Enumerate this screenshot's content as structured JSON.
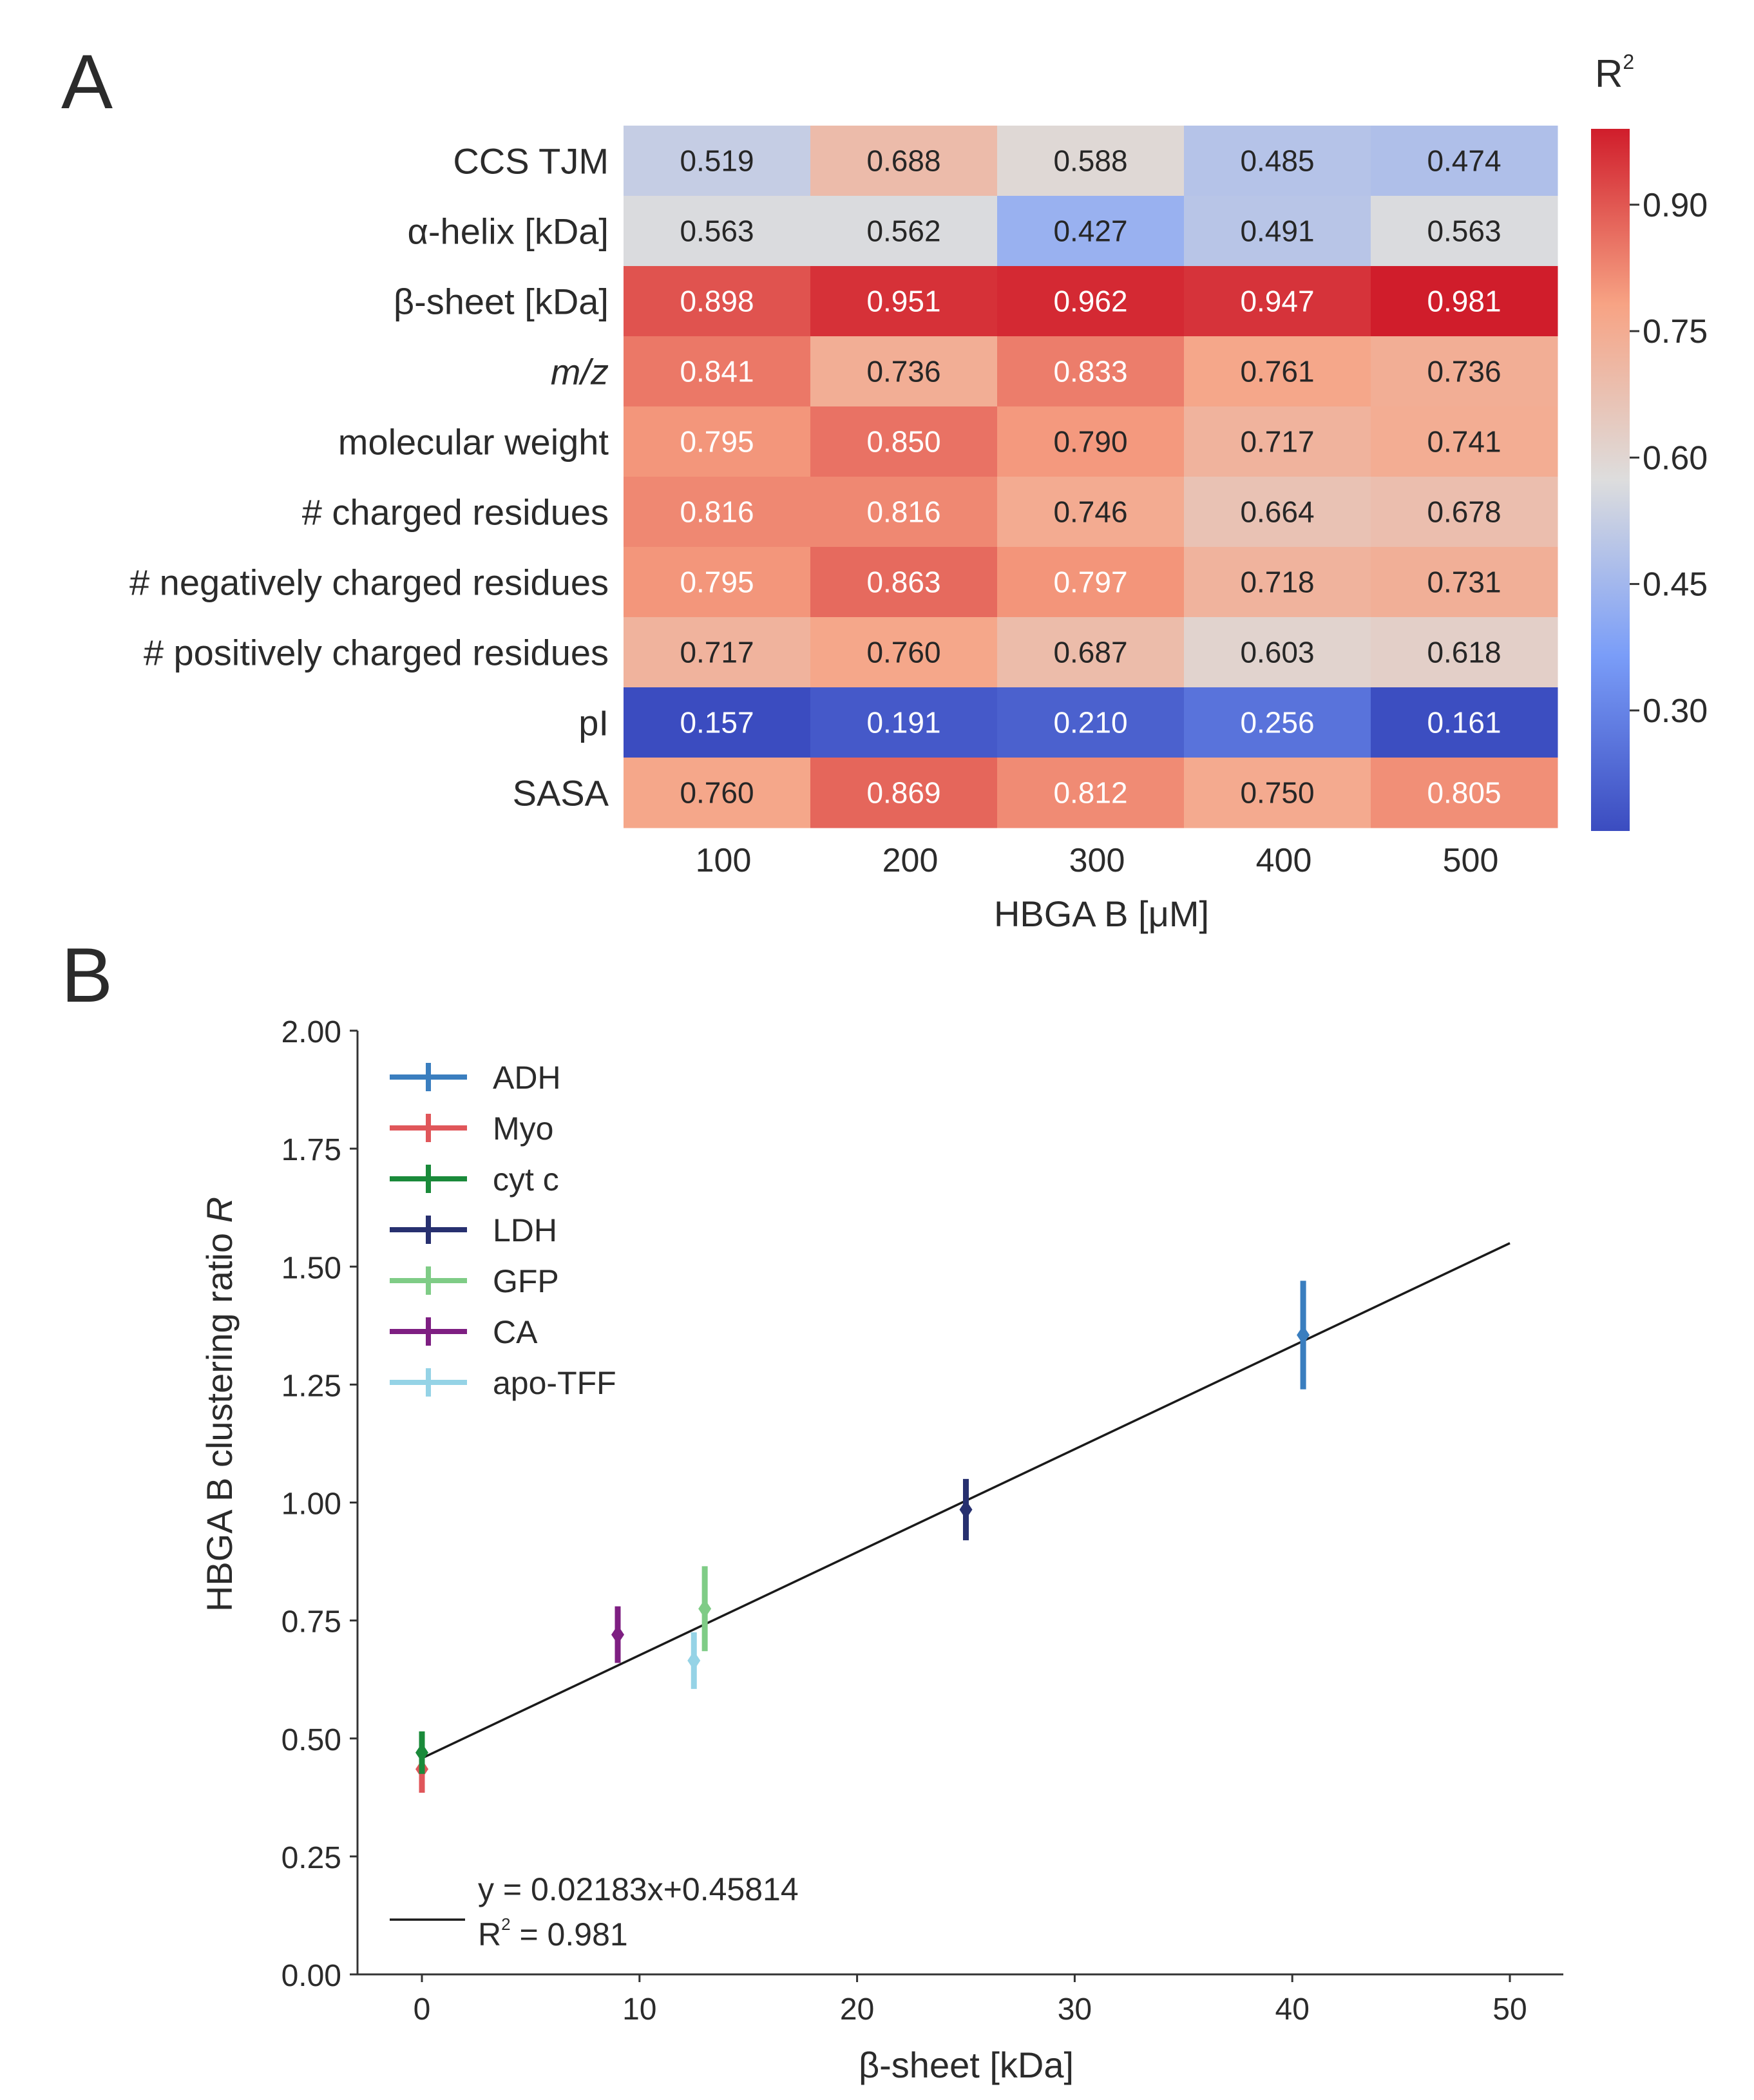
{
  "panel_a": {
    "letter": "A",
    "colorbar_title": "R",
    "colorbar_title_sup": "2",
    "colorbar_ticks": [
      {
        "value": 0.9,
        "label": "0.90"
      },
      {
        "value": 0.75,
        "label": "0.75"
      },
      {
        "value": 0.6,
        "label": "0.60"
      },
      {
        "value": 0.45,
        "label": "0.45"
      },
      {
        "value": 0.3,
        "label": "0.30"
      }
    ]
  },
  "panel_b": {
    "letter": "B",
    "fit_equation": "y = 0.02183x+0.45814",
    "fit_r2_prefix": "R",
    "fit_r2_sup": "2",
    "fit_r2_value": " = 0.981"
  },
  "chart_data": [
    {
      "type": "heatmap",
      "title": "",
      "xlabel": "HBGA B [μM]",
      "ylabel": "",
      "x_categories": [
        "100",
        "200",
        "300",
        "400",
        "500"
      ],
      "y_categories": [
        {
          "label": "CCS TJM",
          "italic": false
        },
        {
          "label": "α-helix [kDa]",
          "italic": false
        },
        {
          "label": "β-sheet [kDa]",
          "italic": false
        },
        {
          "label": "m/z",
          "italic": true
        },
        {
          "label": "molecular weight",
          "italic": false
        },
        {
          "label": "# charged residues",
          "italic": false
        },
        {
          "label": "# negatively charged residues",
          "italic": false
        },
        {
          "label": "# positively charged residues",
          "italic": false
        },
        {
          "label": "pI",
          "italic": false
        },
        {
          "label": "SASA",
          "italic": false
        }
      ],
      "values": [
        [
          "0.519",
          "0.688",
          "0.588",
          "0.485",
          "0.474"
        ],
        [
          "0.563",
          "0.562",
          "0.427",
          "0.491",
          "0.563"
        ],
        [
          "0.898",
          "0.951",
          "0.962",
          "0.947",
          "0.981"
        ],
        [
          "0.841",
          "0.736",
          "0.833",
          "0.761",
          "0.736"
        ],
        [
          "0.795",
          "0.850",
          "0.790",
          "0.717",
          "0.741"
        ],
        [
          "0.816",
          "0.816",
          "0.746",
          "0.664",
          "0.678"
        ],
        [
          "0.795",
          "0.863",
          "0.797",
          "0.718",
          "0.731"
        ],
        [
          "0.717",
          "0.760",
          "0.687",
          "0.603",
          "0.618"
        ],
        [
          "0.157",
          "0.191",
          "0.210",
          "0.256",
          "0.161"
        ],
        [
          "0.760",
          "0.869",
          "0.812",
          "0.750",
          "0.805"
        ]
      ],
      "colormap": "coolwarm",
      "color_range": [
        0.157,
        0.981
      ],
      "colors": {
        "low": "#3b4cc0",
        "mid": "#dddddd",
        "high": "#d01d2b"
      }
    },
    {
      "type": "scatter",
      "title": "",
      "xlabel": "β-sheet [kDa]",
      "ylabel": "HBGA B clustering ratio R",
      "xlim": [
        -3,
        52
      ],
      "ylim": [
        0,
        2.0
      ],
      "xticks": [
        {
          "value": 0,
          "label": "0"
        },
        {
          "value": 10,
          "label": "10"
        },
        {
          "value": 20,
          "label": "20"
        },
        {
          "value": 30,
          "label": "30"
        },
        {
          "value": 40,
          "label": "40"
        },
        {
          "value": 50,
          "label": "50"
        }
      ],
      "yticks": [
        {
          "value": 0,
          "label": "0.00"
        },
        {
          "value": 0.25,
          "label": "0.25"
        },
        {
          "value": 0.5,
          "label": "0.50"
        },
        {
          "value": 0.75,
          "label": "0.75"
        },
        {
          "value": 1.0,
          "label": "1.00"
        },
        {
          "value": 1.25,
          "label": "1.25"
        },
        {
          "value": 1.5,
          "label": "1.50"
        },
        {
          "value": 1.75,
          "label": "1.75"
        },
        {
          "value": 2.0,
          "label": "2.00"
        }
      ],
      "grid": false,
      "legend_position": "top-left",
      "series": [
        {
          "name": "ADH",
          "color": "#3a7ebf",
          "x": 40.5,
          "y": 1.355,
          "yerr": 0.115
        },
        {
          "name": "Myo",
          "color": "#e0565a",
          "x": 0.0,
          "y": 0.435,
          "yerr": 0.05
        },
        {
          "name": "cyt c",
          "color": "#1a8a3a",
          "x": 0.0,
          "y": 0.47,
          "yerr": 0.045
        },
        {
          "name": "LDH",
          "color": "#27306f",
          "x": 25.0,
          "y": 0.985,
          "yerr": 0.065
        },
        {
          "name": "GFP",
          "color": "#7fcc86",
          "x": 13.0,
          "y": 0.775,
          "yerr": 0.09
        },
        {
          "name": "CA",
          "color": "#7e1f82",
          "x": 9.0,
          "y": 0.72,
          "yerr": 0.06
        },
        {
          "name": "apo-TFF",
          "color": "#95d3e6",
          "x": 12.5,
          "y": 0.665,
          "yerr": 0.06
        }
      ],
      "fit_line": {
        "slope": 0.02183,
        "intercept": 0.45814,
        "x_range": [
          0,
          50
        ],
        "color": "#1a1a1a"
      }
    }
  ]
}
